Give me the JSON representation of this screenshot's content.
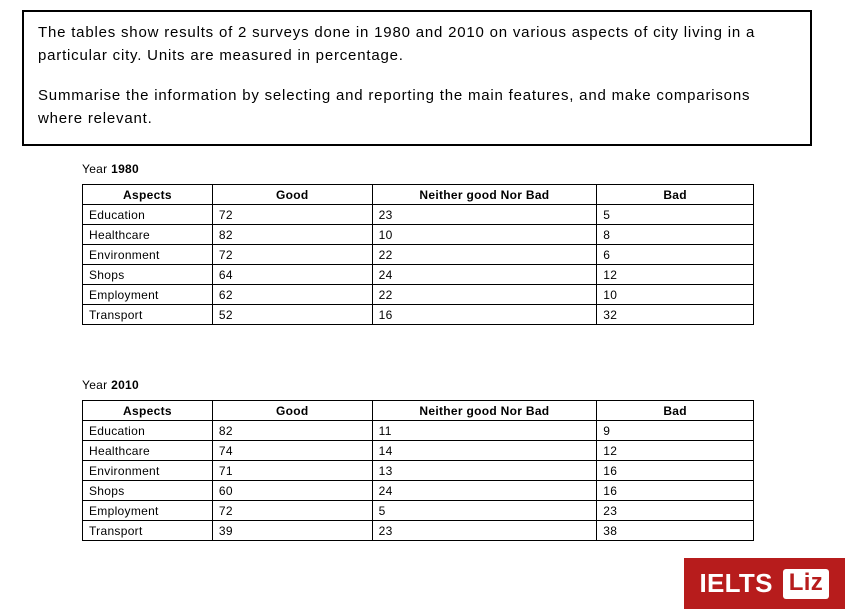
{
  "prompt": {
    "para1": "The tables show results of 2 surveys done in 1980 and 2010 on various aspects of city living in a particular city. Units are measured in percentage.",
    "para2": "Summarise the information by selecting and reporting the main features, and make comparisons where relevant."
  },
  "columns": [
    "Aspects",
    "Good",
    "Neither good Nor Bad",
    "Bad"
  ],
  "tables": [
    {
      "year": "1980",
      "year_prefix": "Year ",
      "rows": [
        {
          "aspect": "Education",
          "good": "72",
          "neither": "23",
          "bad": "5"
        },
        {
          "aspect": "Healthcare",
          "good": "82",
          "neither": "10",
          "bad": "8"
        },
        {
          "aspect": "Environment",
          "good": "72",
          "neither": "22",
          "bad": "6"
        },
        {
          "aspect": "Shops",
          "good": "64",
          "neither": "24",
          "bad": "12"
        },
        {
          "aspect": "Employment",
          "good": "62",
          "neither": "22",
          "bad": "10"
        },
        {
          "aspect": "Transport",
          "good": "52",
          "neither": "16",
          "bad": "32"
        }
      ]
    },
    {
      "year": "2010",
      "year_prefix": "Year ",
      "rows": [
        {
          "aspect": "Education",
          "good": "82",
          "neither": "11",
          "bad": "9"
        },
        {
          "aspect": "Healthcare",
          "good": "74",
          "neither": "14",
          "bad": "12"
        },
        {
          "aspect": "Environment",
          "good": "71",
          "neither": "13",
          "bad": "16"
        },
        {
          "aspect": "Shops",
          "good": "60",
          "neither": "24",
          "bad": "16"
        },
        {
          "aspect": "Employment",
          "good": "72",
          "neither": "5",
          "bad": "23"
        },
        {
          "aspect": "Transport",
          "good": "39",
          "neither": "23",
          "bad": "38"
        }
      ]
    }
  ],
  "logo": {
    "brand": "IELTS",
    "name": "Liz"
  },
  "style": {
    "border_color": "#000000",
    "bg_color": "#ffffff",
    "logo_bg": "#b71c1c",
    "logo_fg": "#ffffff"
  }
}
